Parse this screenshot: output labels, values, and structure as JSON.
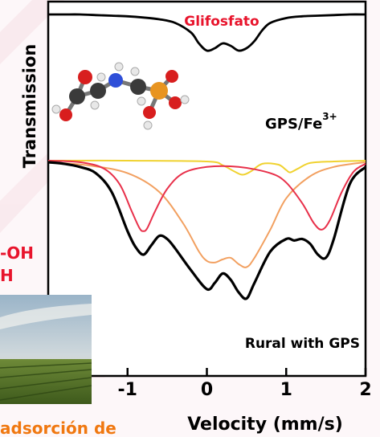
{
  "texts": {
    "ylabel": "Transmission",
    "xlabel": "Velocity (mm/s)",
    "title": "Glifosfato",
    "gps_label": "GPS/Fe",
    "gps_sup": "3+",
    "rural_label": "Rural with GPS",
    "left_oh": "-OH",
    "left_h": "H",
    "bottom_left": "adsorción de"
  },
  "colors": {
    "title": "#e8142c",
    "black": "#000000",
    "red": "#e8304a",
    "orange": "#f2a060",
    "yellow": "#f0d230",
    "left_text": "#e8142c",
    "bottom_text": "#f07810"
  },
  "chart_data": {
    "type": "line",
    "xlabel": "Velocity (mm/s)",
    "ylabel": "Transmission",
    "xlim": [
      -2,
      2
    ],
    "xticks": [
      {
        "value": -1,
        "label": "-1"
      },
      {
        "value": 0,
        "label": "0"
      },
      {
        "value": 1,
        "label": "1"
      },
      {
        "value": 2,
        "label": "2"
      }
    ],
    "series": [
      {
        "name": "GPS/Fe3+",
        "color": "#000000",
        "x": [
          -2,
          -1.8,
          -1.6,
          -1.4,
          -1.2,
          -1.0,
          -0.8,
          -0.6,
          -0.4,
          -0.2,
          -0.1,
          0.0,
          0.1,
          0.2,
          0.3,
          0.4,
          0.5,
          0.6,
          0.7,
          0.8,
          1.0,
          1.2,
          1.4,
          1.6,
          1.8,
          2.0
        ],
        "y": [
          1.0,
          1.0,
          1.0,
          0.995,
          0.99,
          0.985,
          0.975,
          0.96,
          0.93,
          0.85,
          0.76,
          0.7,
          0.72,
          0.76,
          0.74,
          0.7,
          0.72,
          0.78,
          0.87,
          0.93,
          0.97,
          0.985,
          0.99,
          0.995,
          1.0,
          1.0
        ]
      },
      {
        "name": "Rural with GPS",
        "color": "#000000",
        "x": [
          -2.0,
          -1.8,
          -1.6,
          -1.4,
          -1.2,
          -1.0,
          -0.9,
          -0.8,
          -0.7,
          -0.6,
          -0.5,
          -0.4,
          -0.2,
          0.0,
          0.1,
          0.2,
          0.3,
          0.4,
          0.5,
          0.6,
          0.8,
          1.0,
          1.1,
          1.2,
          1.3,
          1.4,
          1.5,
          1.6,
          1.8,
          2.0
        ],
        "y": [
          0.99,
          0.98,
          0.96,
          0.92,
          0.8,
          0.55,
          0.45,
          0.4,
          0.46,
          0.52,
          0.5,
          0.44,
          0.3,
          0.18,
          0.22,
          0.28,
          0.24,
          0.16,
          0.12,
          0.22,
          0.42,
          0.5,
          0.49,
          0.5,
          0.47,
          0.4,
          0.38,
          0.5,
          0.85,
          0.96
        ]
      },
      {
        "name": "",
        "color": "#e8304a",
        "x": [
          -2.0,
          -1.6,
          -1.3,
          -1.1,
          -0.95,
          -0.85,
          -0.8,
          -0.75,
          -0.65,
          -0.5,
          -0.3,
          0.0,
          0.4,
          0.8,
          1.0,
          1.2,
          1.35,
          1.45,
          1.55,
          1.7,
          1.85,
          2.0
        ],
        "y": [
          1.0,
          0.99,
          0.95,
          0.85,
          0.68,
          0.57,
          0.55,
          0.57,
          0.68,
          0.82,
          0.92,
          0.96,
          0.96,
          0.92,
          0.86,
          0.73,
          0.6,
          0.56,
          0.62,
          0.8,
          0.93,
          0.98
        ]
      },
      {
        "name": "",
        "color": "#f2a060",
        "x": [
          -2.0,
          -1.5,
          -1.0,
          -0.6,
          -0.3,
          -0.1,
          0.0,
          0.1,
          0.2,
          0.3,
          0.4,
          0.5,
          0.6,
          0.8,
          1.0,
          1.3,
          1.6,
          2.0
        ],
        "y": [
          0.99,
          0.97,
          0.92,
          0.8,
          0.6,
          0.42,
          0.36,
          0.35,
          0.37,
          0.38,
          0.34,
          0.32,
          0.38,
          0.56,
          0.76,
          0.9,
          0.96,
          0.99
        ]
      },
      {
        "name": "",
        "color": "#f0d230",
        "x": [
          -2.0,
          -1.0,
          0.0,
          0.2,
          0.35,
          0.45,
          0.55,
          0.7,
          0.9,
          1.0,
          1.05,
          1.15,
          1.3,
          1.6,
          2.0
        ],
        "y": [
          1.0,
          1.0,
          0.995,
          0.97,
          0.93,
          0.91,
          0.93,
          0.98,
          0.975,
          0.94,
          0.925,
          0.95,
          0.985,
          0.995,
          1.0
        ]
      }
    ]
  }
}
